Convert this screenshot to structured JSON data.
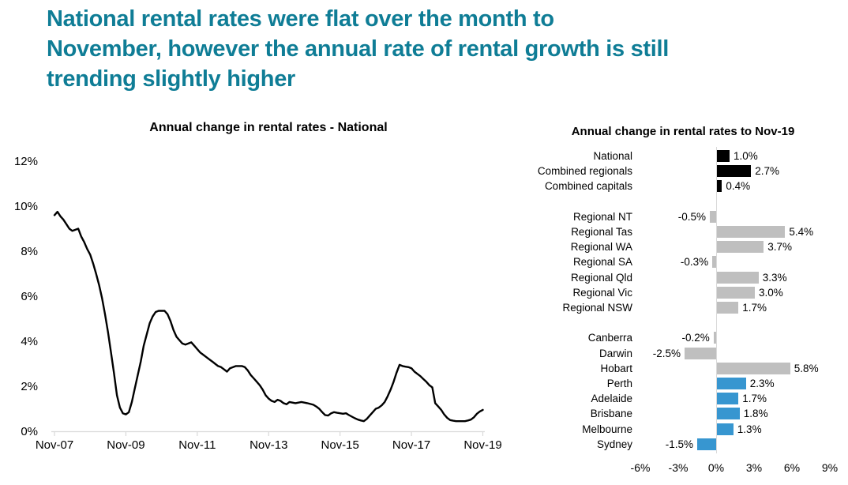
{
  "header": {
    "color": "#0F7D96",
    "lines": [
      "National rental rates were flat over the month to",
      "November, however the annual rate of rental growth is still",
      "trending slightly higher"
    ]
  },
  "colors": {
    "line": "#000000",
    "axis": "#D9D9D9",
    "black_bar": "#000000",
    "gray_bar": "#BFBFBF",
    "blue_bar": "#3796D0"
  },
  "chart_data": [
    {
      "type": "line",
      "title": "Annual change in rental rates - National",
      "xlabel": "",
      "ylabel": "",
      "grid": false,
      "legend": "none",
      "ylim": [
        0,
        12
      ],
      "y_tick_values": [
        12,
        10,
        8,
        6,
        4,
        2,
        0
      ],
      "y_tick_labels": [
        "12%",
        "10%",
        "8%",
        "6%",
        "4%",
        "2%",
        "0%"
      ],
      "x_tick_months": [
        0,
        24,
        48,
        72,
        96,
        120,
        144
      ],
      "x_tick_labels": [
        "Nov-07",
        "Nov-09",
        "Nov-11",
        "Nov-13",
        "Nov-15",
        "Nov-17",
        "Nov-19"
      ],
      "series": [
        {
          "name": "Annual change in rental rates - National",
          "color": "#000000",
          "points": [
            [
              0,
              9.6
            ],
            [
              1,
              9.75
            ],
            [
              2,
              9.55
            ],
            [
              3,
              9.4
            ],
            [
              4,
              9.2
            ],
            [
              5,
              9.0
            ],
            [
              6,
              8.9
            ],
            [
              7,
              8.95
            ],
            [
              8,
              9.0
            ],
            [
              9,
              8.65
            ],
            [
              10,
              8.4
            ],
            [
              11,
              8.1
            ],
            [
              12,
              7.85
            ],
            [
              13,
              7.45
            ],
            [
              14,
              7.0
            ],
            [
              15,
              6.5
            ],
            [
              16,
              5.9
            ],
            [
              17,
              5.2
            ],
            [
              18,
              4.4
            ],
            [
              19,
              3.5
            ],
            [
              20,
              2.6
            ],
            [
              21,
              1.6
            ],
            [
              22,
              1.05
            ],
            [
              23,
              0.8
            ],
            [
              24,
              0.75
            ],
            [
              25,
              0.85
            ],
            [
              26,
              1.3
            ],
            [
              27,
              1.9
            ],
            [
              28,
              2.5
            ],
            [
              29,
              3.1
            ],
            [
              30,
              3.8
            ],
            [
              31,
              4.3
            ],
            [
              32,
              4.8
            ],
            [
              33,
              5.1
            ],
            [
              34,
              5.3
            ],
            [
              35,
              5.35
            ],
            [
              37,
              5.35
            ],
            [
              38,
              5.2
            ],
            [
              39,
              4.9
            ],
            [
              40,
              4.5
            ],
            [
              41,
              4.2
            ],
            [
              42,
              4.05
            ],
            [
              43,
              3.9
            ],
            [
              44,
              3.85
            ],
            [
              46,
              3.95
            ],
            [
              47,
              3.8
            ],
            [
              48,
              3.65
            ],
            [
              49,
              3.5
            ],
            [
              50,
              3.4
            ],
            [
              51,
              3.3
            ],
            [
              52,
              3.2
            ],
            [
              53,
              3.1
            ],
            [
              54,
              3.0
            ],
            [
              55,
              2.9
            ],
            [
              56,
              2.85
            ],
            [
              57,
              2.75
            ],
            [
              58,
              2.65
            ],
            [
              59,
              2.8
            ],
            [
              61,
              2.9
            ],
            [
              63,
              2.9
            ],
            [
              64,
              2.85
            ],
            [
              65,
              2.7
            ],
            [
              66,
              2.5
            ],
            [
              67,
              2.35
            ],
            [
              68,
              2.2
            ],
            [
              69,
              2.05
            ],
            [
              70,
              1.85
            ],
            [
              71,
              1.6
            ],
            [
              72,
              1.45
            ],
            [
              73,
              1.35
            ],
            [
              74,
              1.3
            ],
            [
              75,
              1.4
            ],
            [
              76,
              1.35
            ],
            [
              77,
              1.25
            ],
            [
              78,
              1.2
            ],
            [
              79,
              1.3
            ],
            [
              81,
              1.25
            ],
            [
              83,
              1.3
            ],
            [
              85,
              1.25
            ],
            [
              87,
              1.18
            ],
            [
              88,
              1.1
            ],
            [
              89,
              1.0
            ],
            [
              90,
              0.85
            ],
            [
              91,
              0.72
            ],
            [
              92,
              0.7
            ],
            [
              93,
              0.8
            ],
            [
              94,
              0.85
            ],
            [
              95,
              0.82
            ],
            [
              96,
              0.8
            ],
            [
              97,
              0.78
            ],
            [
              98,
              0.8
            ],
            [
              99,
              0.72
            ],
            [
              100,
              0.65
            ],
            [
              101,
              0.58
            ],
            [
              102,
              0.52
            ],
            [
              103,
              0.48
            ],
            [
              104,
              0.45
            ],
            [
              105,
              0.55
            ],
            [
              106,
              0.7
            ],
            [
              107,
              0.85
            ],
            [
              108,
              1.0
            ],
            [
              109,
              1.05
            ],
            [
              110,
              1.15
            ],
            [
              111,
              1.3
            ],
            [
              112,
              1.55
            ],
            [
              113,
              1.85
            ],
            [
              114,
              2.2
            ],
            [
              115,
              2.6
            ],
            [
              116,
              2.95
            ],
            [
              117,
              2.9
            ],
            [
              118,
              2.87
            ],
            [
              119,
              2.85
            ],
            [
              120,
              2.8
            ],
            [
              121,
              2.65
            ],
            [
              122,
              2.55
            ],
            [
              123,
              2.45
            ],
            [
              124,
              2.32
            ],
            [
              125,
              2.2
            ],
            [
              126,
              2.05
            ],
            [
              127,
              1.95
            ],
            [
              128,
              1.25
            ],
            [
              129,
              1.1
            ],
            [
              130,
              0.95
            ],
            [
              131,
              0.75
            ],
            [
              132,
              0.6
            ],
            [
              133,
              0.5
            ],
            [
              134,
              0.47
            ],
            [
              135,
              0.45
            ],
            [
              136,
              0.45
            ],
            [
              137,
              0.45
            ],
            [
              138,
              0.45
            ],
            [
              139,
              0.48
            ],
            [
              140,
              0.52
            ],
            [
              141,
              0.62
            ],
            [
              142,
              0.78
            ],
            [
              143,
              0.88
            ],
            [
              144,
              0.95
            ]
          ]
        }
      ]
    },
    {
      "type": "bar",
      "orientation": "horizontal",
      "title": "Annual change in rental rates to Nov-19",
      "xlim": [
        -6,
        9
      ],
      "x_ticks": [
        -6,
        -3,
        0,
        3,
        6,
        9
      ],
      "x_tick_labels": [
        "-6%",
        "-3%",
        "0%",
        "3%",
        "6%",
        "9%"
      ],
      "rows": [
        {
          "label": "National",
          "value": 1.0,
          "display": "1.0%",
          "color": "#000000"
        },
        {
          "label": "Combined regionals",
          "value": 2.7,
          "display": "2.7%",
          "color": "#000000"
        },
        {
          "label": "Combined capitals",
          "value": 0.4,
          "display": "0.4%",
          "color": "#000000"
        },
        {
          "spacer": true
        },
        {
          "label": "Regional NT",
          "value": -0.5,
          "display": "-0.5%",
          "color": "#BFBFBF"
        },
        {
          "label": "Regional Tas",
          "value": 5.4,
          "display": "5.4%",
          "color": "#BFBFBF"
        },
        {
          "label": "Regional WA",
          "value": 3.7,
          "display": "3.7%",
          "color": "#BFBFBF"
        },
        {
          "label": "Regional SA",
          "value": -0.3,
          "display": "-0.3%",
          "color": "#BFBFBF"
        },
        {
          "label": "Regional Qld",
          "value": 3.3,
          "display": "3.3%",
          "color": "#BFBFBF"
        },
        {
          "label": "Regional Vic",
          "value": 3.0,
          "display": "3.0%",
          "color": "#BFBFBF"
        },
        {
          "label": "Regional NSW",
          "value": 1.7,
          "display": "1.7%",
          "color": "#BFBFBF"
        },
        {
          "spacer": true
        },
        {
          "label": "Canberra",
          "value": -0.2,
          "display": "-0.2%",
          "color": "#BFBFBF"
        },
        {
          "label": "Darwin",
          "value": -2.5,
          "display": "-2.5%",
          "color": "#BFBFBF"
        },
        {
          "label": "Hobart",
          "value": 5.8,
          "display": "5.8%",
          "color": "#BFBFBF"
        },
        {
          "label": "Perth",
          "value": 2.3,
          "display": "2.3%",
          "color": "#3796D0"
        },
        {
          "label": "Adelaide",
          "value": 1.7,
          "display": "1.7%",
          "color": "#3796D0"
        },
        {
          "label": "Brisbane",
          "value": 1.8,
          "display": "1.8%",
          "color": "#3796D0"
        },
        {
          "label": "Melbourne",
          "value": 1.3,
          "display": "1.3%",
          "color": "#3796D0"
        },
        {
          "label": "Sydney",
          "value": -1.5,
          "display": "-1.5%",
          "color": "#3796D0"
        }
      ]
    }
  ]
}
